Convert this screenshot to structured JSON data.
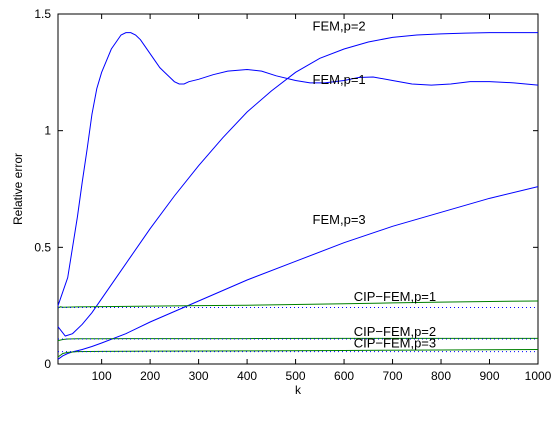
{
  "chart_data": {
    "type": "line",
    "xlabel": "k",
    "ylabel": "Relative error",
    "xlim": [
      10,
      1000
    ],
    "ylim": [
      0,
      1.5
    ],
    "xticks": [
      100,
      200,
      300,
      400,
      500,
      600,
      700,
      800,
      900,
      1000
    ],
    "yticks": [
      0,
      0.5,
      1,
      1.5
    ],
    "grid": false,
    "colors": {
      "fem": "#0000ff",
      "cip": "#008000",
      "dotted": "#0000ff"
    },
    "series": [
      {
        "name": "FEM,p=1",
        "color": "#0000ff",
        "x": [
          10,
          20,
          30,
          40,
          50,
          60,
          70,
          80,
          90,
          100,
          110,
          120,
          130,
          140,
          150,
          160,
          170,
          180,
          190,
          200,
          210,
          220,
          230,
          240,
          250,
          260,
          270,
          280,
          300,
          330,
          360,
          400,
          430,
          460,
          500,
          530,
          560,
          600,
          630,
          660,
          700,
          740,
          780,
          820,
          860,
          900,
          950,
          1000
        ],
        "y": [
          0.25,
          0.31,
          0.37,
          0.5,
          0.63,
          0.78,
          0.92,
          1.07,
          1.18,
          1.25,
          1.3,
          1.35,
          1.38,
          1.41,
          1.42,
          1.42,
          1.41,
          1.39,
          1.36,
          1.33,
          1.3,
          1.27,
          1.25,
          1.23,
          1.21,
          1.2,
          1.2,
          1.21,
          1.22,
          1.24,
          1.255,
          1.262,
          1.255,
          1.235,
          1.215,
          1.205,
          1.205,
          1.215,
          1.228,
          1.23,
          1.215,
          1.2,
          1.195,
          1.2,
          1.21,
          1.21,
          1.205,
          1.195
        ]
      },
      {
        "name": "FEM,p=2",
        "color": "#0000ff",
        "x": [
          10,
          25,
          40,
          60,
          80,
          100,
          130,
          160,
          200,
          250,
          300,
          350,
          400,
          450,
          500,
          550,
          600,
          650,
          700,
          750,
          800,
          850,
          900,
          950,
          1000
        ],
        "y": [
          0.16,
          0.12,
          0.13,
          0.17,
          0.22,
          0.28,
          0.37,
          0.46,
          0.58,
          0.72,
          0.85,
          0.97,
          1.08,
          1.17,
          1.25,
          1.31,
          1.35,
          1.38,
          1.4,
          1.41,
          1.415,
          1.418,
          1.42,
          1.42,
          1.42
        ]
      },
      {
        "name": "FEM,p=3",
        "color": "#0000ff",
        "x": [
          10,
          20,
          30,
          40,
          60,
          80,
          100,
          150,
          200,
          300,
          400,
          500,
          600,
          700,
          800,
          900,
          1000
        ],
        "y": [
          0.02,
          0.035,
          0.045,
          0.052,
          0.062,
          0.075,
          0.09,
          0.13,
          0.18,
          0.27,
          0.36,
          0.44,
          0.52,
          0.59,
          0.65,
          0.71,
          0.76
        ]
      },
      {
        "name": "CIP−FEM,p=1",
        "color": "#008000",
        "x": [
          10,
          15,
          20,
          30,
          50,
          100,
          200,
          300,
          400,
          500,
          600,
          700,
          800,
          900,
          1000
        ],
        "y": [
          0.24,
          0.245,
          0.243,
          0.244,
          0.245,
          0.246,
          0.248,
          0.25,
          0.252,
          0.255,
          0.258,
          0.262,
          0.265,
          0.268,
          0.27
        ]
      },
      {
        "name": "CIP−FEM,p=2",
        "color": "#008000",
        "x": [
          10,
          20,
          30,
          50,
          100,
          200,
          400,
          600,
          800,
          1000
        ],
        "y": [
          0.1,
          0.105,
          0.107,
          0.108,
          0.108,
          0.109,
          0.109,
          0.11,
          0.11,
          0.11
        ]
      },
      {
        "name": "CIP−FEM,p=3",
        "color": "#008000",
        "x": [
          10,
          20,
          30,
          50,
          100,
          200,
          400,
          600,
          800,
          1000
        ],
        "y": [
          0.03,
          0.045,
          0.05,
          0.053,
          0.054,
          0.055,
          0.056,
          0.058,
          0.06,
          0.062
        ]
      },
      {
        "name": "",
        "color": "#0000ff",
        "style": "dotted",
        "x": [
          10,
          1000
        ],
        "y": [
          0.242,
          0.242
        ]
      },
      {
        "name": "",
        "color": "#0000ff",
        "style": "dotted",
        "x": [
          10,
          1000
        ],
        "y": [
          0.107,
          0.107
        ]
      },
      {
        "name": "",
        "color": "#0000ff",
        "style": "dotted",
        "x": [
          10,
          1000
        ],
        "y": [
          0.053,
          0.053
        ]
      }
    ],
    "annotations": [
      {
        "text": "FEM,p=2",
        "x": 535,
        "y": 1.43
      },
      {
        "text": "FEM,p=1",
        "x": 535,
        "y": 1.2
      },
      {
        "text": "FEM,p=3",
        "x": 535,
        "y": 0.6
      },
      {
        "text": "CIP−FEM,p=1",
        "x": 620,
        "y": 0.27
      },
      {
        "text": "CIP−FEM,p=2",
        "x": 620,
        "y": 0.12
      },
      {
        "text": "CIP−FEM,p=3",
        "x": 620,
        "y": 0.07
      }
    ]
  }
}
